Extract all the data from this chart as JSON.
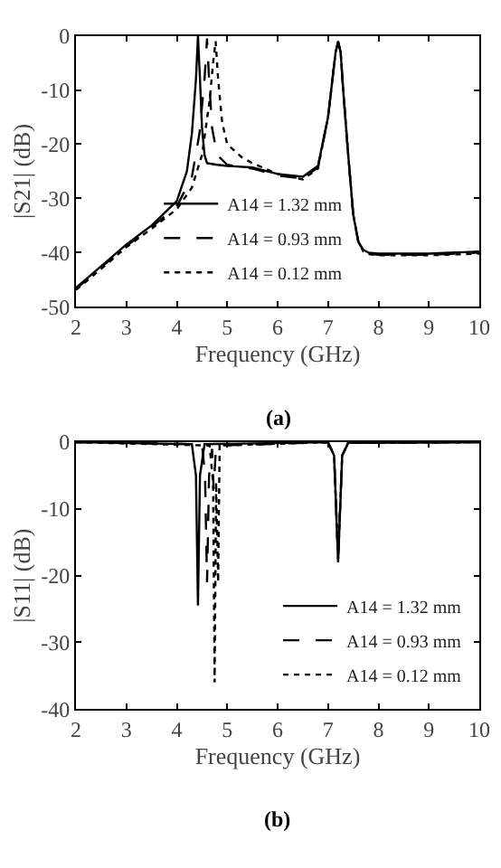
{
  "chart_data": [
    {
      "type": "line",
      "xlabel": "Frequency (GHz)",
      "ylabel": "|S21| (dB)",
      "xlim": [
        2,
        10
      ],
      "ylim": [
        -50,
        0
      ],
      "xticks": [
        2,
        3,
        4,
        5,
        6,
        7,
        8,
        9,
        10
      ],
      "yticks": [
        -50,
        -40,
        -30,
        -20,
        -10,
        0
      ],
      "legend": "bottom",
      "marker": "none",
      "annotations": [
        "(a)"
      ],
      "series": [
        {
          "name": "A14 = 1.32 mm",
          "color": "#000000",
          "line_style": "solid",
          "x": [
            2,
            2.5,
            3,
            3.5,
            4,
            4.2,
            4.3,
            4.38,
            4.42,
            4.46,
            4.5,
            4.55,
            4.6,
            4.8,
            5,
            5.5,
            6,
            6.5,
            6.8,
            7,
            7.1,
            7.15,
            7.2,
            7.25,
            7.3,
            7.4,
            7.5,
            7.6,
            7.7,
            7.8,
            8,
            9,
            10
          ],
          "values": [
            -46.5,
            -42.5,
            -38.5,
            -35,
            -30.5,
            -25,
            -18,
            -8,
            0,
            -8,
            -17,
            -22,
            -23.5,
            -23.8,
            -24,
            -24.3,
            -25.5,
            -26,
            -24,
            -15,
            -7,
            -3,
            -1,
            -3,
            -10,
            -22,
            -33,
            -38,
            -39.5,
            -40,
            -40.2,
            -40.2,
            -39.8
          ]
        },
        {
          "name": "A14 = 0.93 mm",
          "color": "#000000",
          "line_style": "dashed",
          "x": [
            2,
            2.5,
            3,
            3.5,
            4,
            4.3,
            4.45,
            4.55,
            4.6,
            4.64,
            4.7,
            4.8,
            5,
            5.5,
            6,
            6.5,
            6.8,
            7,
            7.1,
            7.15,
            7.2,
            7.25,
            7.3,
            7.4,
            7.5,
            7.6,
            7.7,
            7.8,
            8,
            9,
            10
          ],
          "values": [
            -46.7,
            -42.7,
            -38.8,
            -35.3,
            -31.5,
            -26,
            -18,
            -8,
            -0.5,
            -8,
            -17,
            -22,
            -23.8,
            -24.5,
            -25.8,
            -26.3,
            -24.3,
            -15,
            -7,
            -3,
            -1.2,
            -3,
            -10,
            -22,
            -33,
            -38,
            -39.7,
            -40.2,
            -40.4,
            -40.4,
            -40
          ]
        },
        {
          "name": "A14 = 0.12 mm",
          "color": "#000000",
          "line_style": "dotted",
          "x": [
            2,
            2.5,
            3,
            3.5,
            4,
            4.3,
            4.5,
            4.65,
            4.72,
            4.77,
            4.82,
            4.9,
            5,
            5.3,
            5.5,
            6,
            6.5,
            6.8,
            7,
            7.1,
            7.15,
            7.2,
            7.25,
            7.3,
            7.4,
            7.5,
            7.6,
            7.7,
            7.8,
            8,
            9,
            10
          ],
          "values": [
            -46.9,
            -43,
            -39,
            -35.6,
            -32,
            -28,
            -22,
            -12,
            -5,
            -1,
            -8,
            -16,
            -20,
            -22.5,
            -23.5,
            -25.5,
            -26.5,
            -24.5,
            -15,
            -7,
            -3,
            -1.2,
            -3,
            -10,
            -22,
            -33,
            -38,
            -39.8,
            -40.3,
            -40.5,
            -40.5,
            -40.2
          ]
        }
      ]
    },
    {
      "type": "line",
      "xlabel": "Frequency (GHz)",
      "ylabel": "|S11| (dB)",
      "xlim": [
        2,
        10
      ],
      "ylim": [
        -40,
        0
      ],
      "xticks": [
        2,
        3,
        4,
        5,
        6,
        7,
        8,
        9,
        10
      ],
      "yticks": [
        -40,
        -30,
        -20,
        -10,
        0
      ],
      "legend": "bottom right",
      "marker": "none",
      "annotations": [
        "(b)"
      ],
      "series": [
        {
          "name": "A14 = 1.32 mm",
          "color": "#000000",
          "line_style": "solid",
          "x": [
            2,
            4.3,
            4.38,
            4.42,
            4.46,
            4.55,
            7.0,
            7.12,
            7.2,
            7.28,
            7.4,
            10
          ],
          "values": [
            0,
            -0.3,
            -5,
            -24.5,
            -5,
            -0.3,
            0,
            -2,
            -18,
            -2,
            -0.1,
            0
          ]
        },
        {
          "name": "A14 = 0.93 mm",
          "color": "#000000",
          "line_style": "dashed",
          "x": [
            2,
            4.5,
            4.56,
            4.6,
            4.64,
            4.7,
            4.73,
            4.78,
            7.0,
            7.12,
            7.2,
            7.28,
            7.4,
            10
          ],
          "values": [
            0,
            -0.3,
            -5,
            -21,
            -5,
            -1,
            -7,
            -0.5,
            0,
            -2,
            -17.5,
            -2,
            -0.1,
            0
          ]
        },
        {
          "name": "A14 = 0.12 mm",
          "color": "#000000",
          "line_style": "dotted",
          "x": [
            2,
            4.65,
            4.72,
            4.75,
            4.78,
            4.82,
            4.85,
            7.0,
            7.12,
            7.2,
            7.28,
            7.4,
            10
          ],
          "values": [
            0,
            -0.5,
            -6,
            -36,
            -6,
            -21,
            -0.5,
            0,
            -2,
            -17.5,
            -2,
            -0.1,
            0
          ]
        }
      ]
    }
  ]
}
